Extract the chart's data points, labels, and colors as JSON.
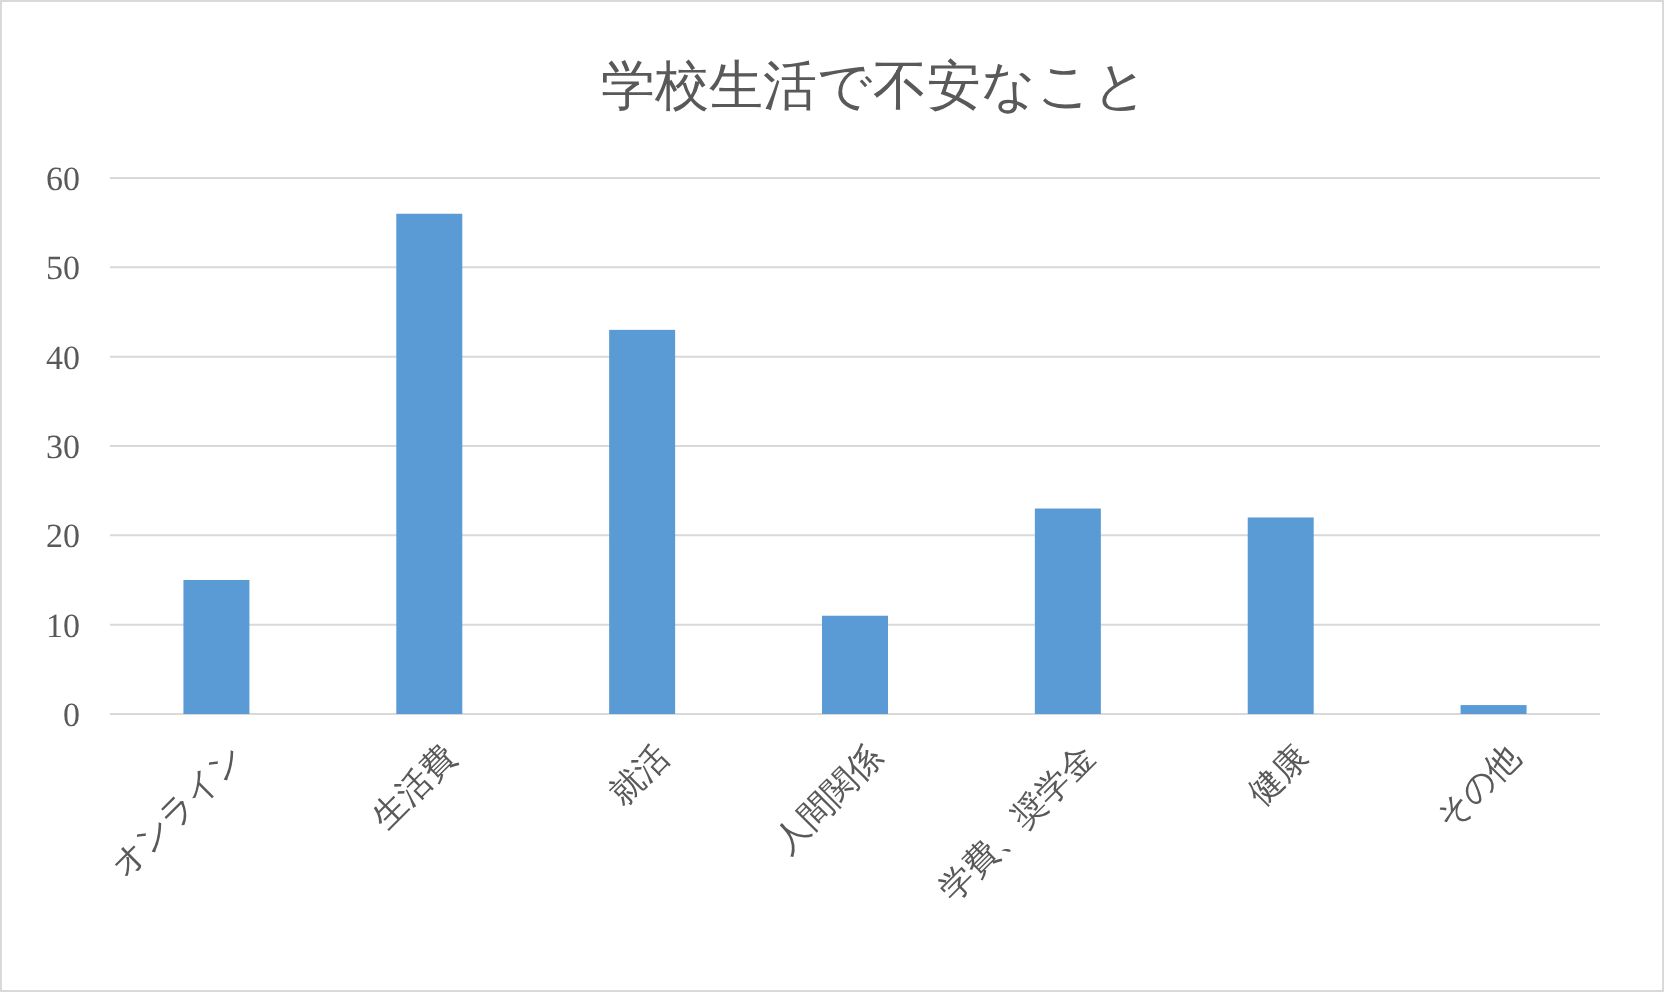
{
  "chart_data": {
    "type": "bar",
    "title": "学校生活で不安なこと",
    "categories": [
      "オンライン",
      "生活費",
      "就活",
      "人間関係",
      "学費、奨学金",
      "健康",
      "その他"
    ],
    "values": [
      15,
      56,
      43,
      11,
      23,
      22,
      1
    ],
    "color": "#5b9bd5",
    "ylim": [
      0,
      60
    ],
    "yticks": [
      0,
      10,
      20,
      30,
      40,
      50,
      60
    ],
    "grid": "y"
  }
}
